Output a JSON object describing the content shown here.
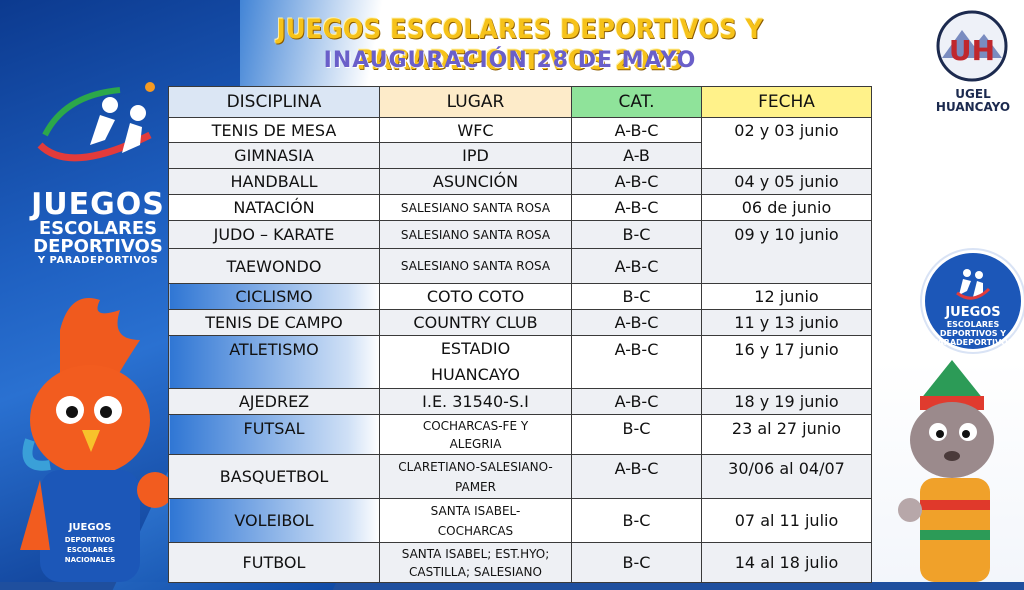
{
  "header": {
    "title": "JUEGOS ESCOLARES DEPORTIVOS Y PARADEPORTIVOS 2025",
    "subtitle": "INAUGURACIÓN 28 DE MAYO"
  },
  "left_logo": {
    "line1": "JUEGOS",
    "line2": "ESCOLARES",
    "line3": "DEPORTIVOS",
    "line4": "Y PARADEPORTIVOS"
  },
  "ugel_logo": {
    "initials": "UH",
    "line1": "UGEL",
    "line2": "HUANCAYO"
  },
  "right_badge": {
    "line1": "JUEGOS",
    "line2": "ESCOLARES DEPORTIVOS Y PARADEPORTIVOS"
  },
  "mascot_left_shirt": {
    "line1": "JUEGOS",
    "line2": "DEPORTIVOS",
    "line3": "ESCOLARES",
    "line4": "NACIONALES"
  },
  "table": {
    "headers": {
      "disciplina": "DISCIPLINA",
      "lugar": "LUGAR",
      "cat": "CAT.",
      "fecha": "FECHA"
    },
    "rows": [
      {
        "disciplina": "TENIS DE MESA",
        "lugar": "WFC",
        "cat": "A-B-C",
        "fecha": "02 y 03 junio"
      },
      {
        "disciplina": "GIMNASIA",
        "lugar": "IPD",
        "cat": "A-B"
      },
      {
        "disciplina": "HANDBALL",
        "lugar": "ASUNCIÓN",
        "cat": "A-B-C",
        "fecha": "04 y 05 junio"
      },
      {
        "disciplina": "NATACIÓN",
        "lugar": "SALESIANO SANTA ROSA",
        "cat": "A-B-C",
        "fecha": "06 de junio"
      },
      {
        "disciplina": "JUDO – KARATE",
        "lugar": "SALESIANO SANTA ROSA",
        "cat": "B-C",
        "fecha": "09 y 10 junio"
      },
      {
        "disciplina": "TAEWONDO",
        "lugar": "SALESIANO SANTA ROSA",
        "cat": "A-B-C"
      },
      {
        "disciplina": "CICLISMO",
        "lugar": "COTO COTO",
        "cat": "B-C",
        "fecha": "12 junio"
      },
      {
        "disciplina": "TENIS DE CAMPO",
        "lugar": "COUNTRY CLUB",
        "cat": "A-B-C",
        "fecha": "11 y 13 junio"
      },
      {
        "disciplina": "ATLETISMO",
        "lugar": "ESTADIO HUANCAYO",
        "cat": "A-B-C",
        "fecha": "16 y 17 junio"
      },
      {
        "disciplina": "AJEDREZ",
        "lugar": "I.E. 31540-S.I",
        "cat": "A-B-C",
        "fecha": "18 y 19 junio"
      },
      {
        "disciplina": "FUTSAL",
        "lugar": "COCHARCAS-FE Y ALEGRIA",
        "cat": "B-C",
        "fecha": "23 al 27 junio"
      },
      {
        "disciplina": "BASQUETBOL",
        "lugar": "CLARETIANO-SALESIANO-PAMER",
        "cat": "A-B-C",
        "fecha": "30/06 al 04/07"
      },
      {
        "disciplina": "VOLEIBOL",
        "lugar": "SANTA ISABEL-COCHARCAS",
        "cat": "B-C",
        "fecha": "07 al 11 julio"
      },
      {
        "disciplina": "FUTBOL",
        "lugar": "SANTA ISABEL; EST.HYO; CASTILLA; SALESIANO",
        "cat": "B-C",
        "fecha": "14 al 18 julio"
      }
    ]
  },
  "colors": {
    "title": "#f6c21a",
    "subtitle": "#6a5fc9",
    "header_disciplina": "#dbe6f4",
    "header_lugar": "#fdebc9",
    "header_cat": "#8fe39a",
    "header_fecha": "#fff28a",
    "brand_blue": "#1c57b8"
  }
}
